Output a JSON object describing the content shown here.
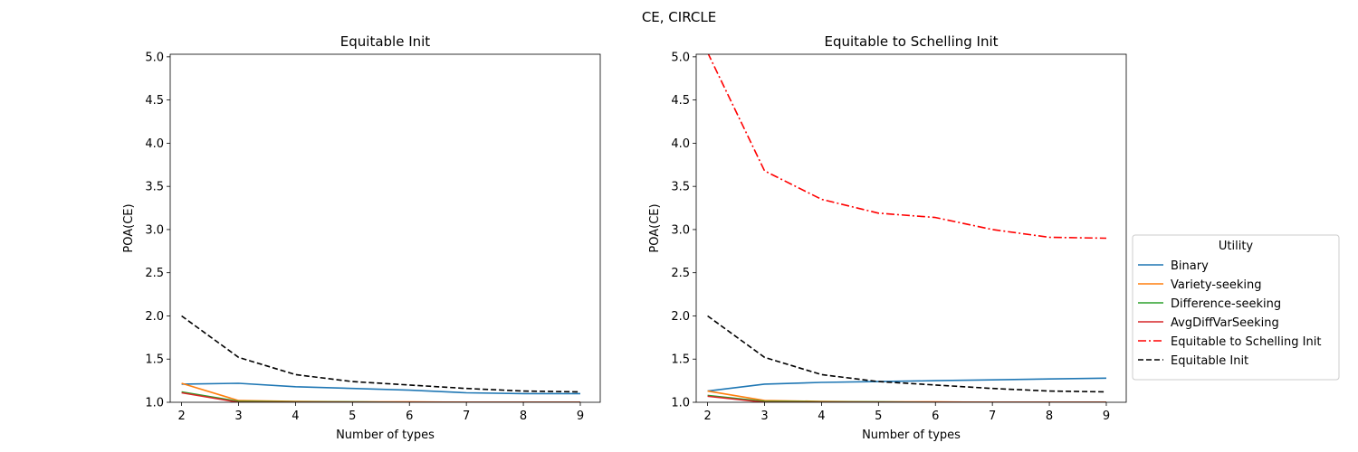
{
  "figure": {
    "title": "CE, CIRCLE"
  },
  "legend": {
    "title": "Utility",
    "placement": "right",
    "entries": [
      {
        "label": "Binary",
        "color": "#1f77b4",
        "style": "solid"
      },
      {
        "label": "Variety-seeking",
        "color": "#ff7f0e",
        "style": "solid"
      },
      {
        "label": "Difference-seeking",
        "color": "#2ca02c",
        "style": "solid"
      },
      {
        "label": "AvgDiffVarSeeking",
        "color": "#d62728",
        "style": "solid"
      },
      {
        "label": "Equitable to Schelling Init",
        "color": "#ff0000",
        "style": "dashdot"
      },
      {
        "label": "Equitable Init",
        "color": "#000000",
        "style": "dashed"
      }
    ]
  },
  "chart_data": [
    {
      "type": "line",
      "title": "Equitable Init",
      "xlabel": "Number of types",
      "ylabel": "POA(CE)",
      "xlim": [
        1.8,
        9.35
      ],
      "ylim": [
        1.0,
        5.03
      ],
      "x": [
        2,
        3,
        4,
        5,
        6,
        7,
        8,
        9
      ],
      "xticks": [
        2,
        3,
        4,
        5,
        6,
        7,
        8,
        9
      ],
      "yticks": [
        1.0,
        1.5,
        2.0,
        2.5,
        3.0,
        3.5,
        4.0,
        4.5,
        5.0
      ],
      "ytick_labels": [
        "1.0",
        "1.5",
        "2.0",
        "2.5",
        "3.0",
        "3.5",
        "4.0",
        "4.5",
        "5.0"
      ],
      "grid": false,
      "series": [
        {
          "name": "Binary",
          "color": "#1f77b4",
          "style": "solid",
          "values": [
            1.21,
            1.22,
            1.18,
            1.16,
            1.14,
            1.11,
            1.1,
            1.1
          ]
        },
        {
          "name": "Variety-seeking",
          "color": "#ff7f0e",
          "style": "solid",
          "values": [
            1.22,
            1.02,
            1.01,
            1.005,
            1.005,
            1.0,
            1.0,
            1.0
          ]
        },
        {
          "name": "Difference-seeking",
          "color": "#2ca02c",
          "style": "solid",
          "values": [
            1.12,
            1.01,
            1.005,
            1.005,
            1.0,
            1.0,
            1.0,
            1.0
          ]
        },
        {
          "name": "AvgDiffVarSeeking",
          "color": "#d62728",
          "style": "solid",
          "values": [
            1.11,
            1.0,
            1.0,
            1.0,
            1.0,
            1.0,
            1.0,
            1.0
          ]
        },
        {
          "name": "Equitable Init",
          "color": "#000000",
          "style": "dashed",
          "values": [
            2.0,
            1.52,
            1.32,
            1.24,
            1.2,
            1.16,
            1.13,
            1.12
          ]
        }
      ]
    },
    {
      "type": "line",
      "title": "Equitable to Schelling Init",
      "xlabel": "Number of types",
      "ylabel": "POA(CE)",
      "xlim": [
        1.8,
        9.35
      ],
      "ylim": [
        1.0,
        5.03
      ],
      "x": [
        2,
        3,
        4,
        5,
        6,
        7,
        8,
        9
      ],
      "xticks": [
        2,
        3,
        4,
        5,
        6,
        7,
        8,
        9
      ],
      "yticks": [
        1.0,
        1.5,
        2.0,
        2.5,
        3.0,
        3.5,
        4.0,
        4.5,
        5.0
      ],
      "ytick_labels": [
        "1.0",
        "1.5",
        "2.0",
        "2.5",
        "3.0",
        "3.5",
        "4.0",
        "4.5",
        "5.0"
      ],
      "grid": false,
      "series": [
        {
          "name": "Binary",
          "color": "#1f77b4",
          "style": "solid",
          "values": [
            1.13,
            1.21,
            1.23,
            1.24,
            1.25,
            1.26,
            1.27,
            1.28
          ]
        },
        {
          "name": "Variety-seeking",
          "color": "#ff7f0e",
          "style": "solid",
          "values": [
            1.13,
            1.02,
            1.01,
            1.005,
            1.005,
            1.0,
            1.0,
            1.0
          ]
        },
        {
          "name": "Difference-seeking",
          "color": "#2ca02c",
          "style": "solid",
          "values": [
            1.08,
            1.01,
            1.005,
            1.005,
            1.0,
            1.0,
            1.0,
            1.0
          ]
        },
        {
          "name": "AvgDiffVarSeeking",
          "color": "#d62728",
          "style": "solid",
          "values": [
            1.07,
            1.0,
            1.0,
            1.0,
            1.0,
            1.0,
            1.0,
            1.0
          ]
        },
        {
          "name": "Equitable to Schelling Init",
          "color": "#ff0000",
          "style": "dashdot",
          "values": [
            5.05,
            3.68,
            3.35,
            3.19,
            3.14,
            3.0,
            2.91,
            2.9
          ]
        },
        {
          "name": "Equitable Init",
          "color": "#000000",
          "style": "dashed",
          "values": [
            2.0,
            1.52,
            1.32,
            1.24,
            1.2,
            1.16,
            1.13,
            1.12
          ]
        }
      ]
    }
  ]
}
